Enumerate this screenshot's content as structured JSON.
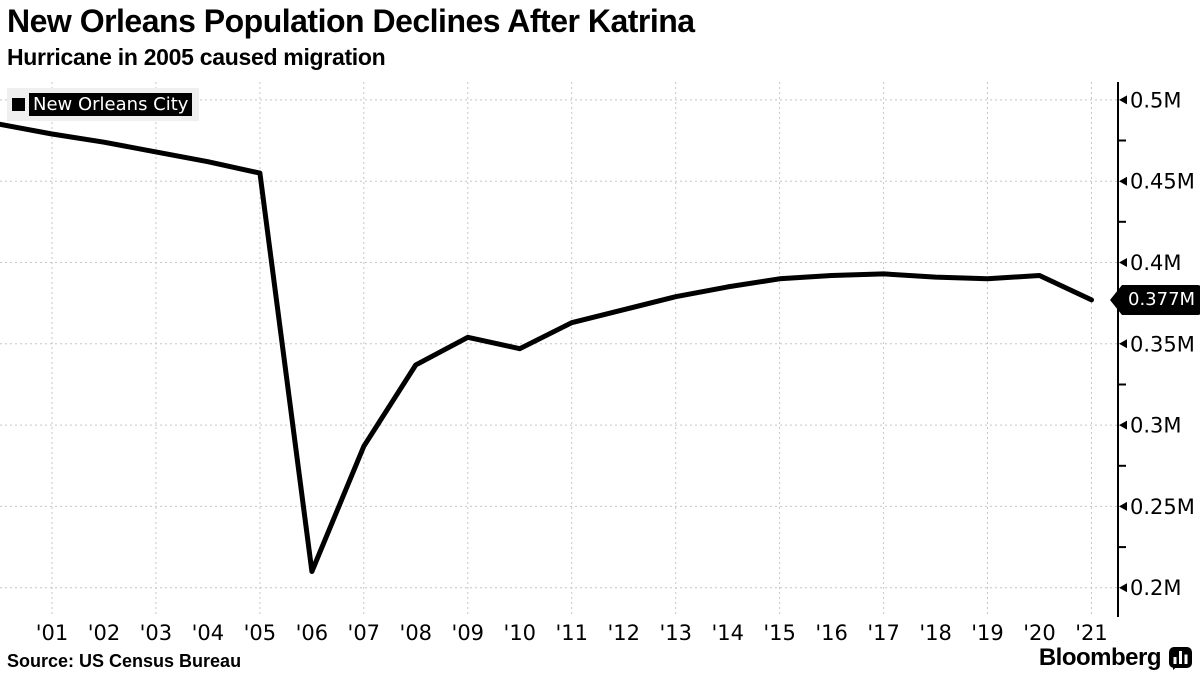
{
  "page": {
    "background": "#ffffff"
  },
  "legend": {
    "label": "New Orleans City",
    "swatch_color": "#000000",
    "background": "#efefef"
  },
  "source": "Source: US Census Bureau",
  "brand": {
    "name": "Bloomberg"
  },
  "chart_data": {
    "type": "line",
    "title": "New Orleans Population Declines After Katrina",
    "subtitle": "Hurricane in 2005 caused migration",
    "x": [
      2000,
      2001,
      2002,
      2003,
      2004,
      2005,
      2006,
      2007,
      2008,
      2009,
      2010,
      2011,
      2012,
      2013,
      2014,
      2015,
      2016,
      2017,
      2018,
      2019,
      2020,
      2021
    ],
    "series": [
      {
        "name": "New Orleans City",
        "color": "#000000",
        "values": [
          0.485,
          0.479,
          0.474,
          0.468,
          0.462,
          0.455,
          0.21,
          0.287,
          0.337,
          0.354,
          0.347,
          0.363,
          0.371,
          0.379,
          0.385,
          0.39,
          0.392,
          0.393,
          0.391,
          0.39,
          0.392,
          0.377
        ]
      }
    ],
    "x_ticks": [
      {
        "year": 2001,
        "label": "'01"
      },
      {
        "year": 2002,
        "label": "'02"
      },
      {
        "year": 2003,
        "label": "'03"
      },
      {
        "year": 2004,
        "label": "'04"
      },
      {
        "year": 2005,
        "label": "'05"
      },
      {
        "year": 2006,
        "label": "'06"
      },
      {
        "year": 2007,
        "label": "'07"
      },
      {
        "year": 2008,
        "label": "'08"
      },
      {
        "year": 2009,
        "label": "'09"
      },
      {
        "year": 2010,
        "label": "'10"
      },
      {
        "year": 2011,
        "label": "'11"
      },
      {
        "year": 2012,
        "label": "'12"
      },
      {
        "year": 2013,
        "label": "'13"
      },
      {
        "year": 2014,
        "label": "'14"
      },
      {
        "year": 2015,
        "label": "'15"
      },
      {
        "year": 2016,
        "label": "'16"
      },
      {
        "year": 2017,
        "label": "'17"
      },
      {
        "year": 2018,
        "label": "'18"
      },
      {
        "year": 2019,
        "label": "'19"
      },
      {
        "year": 2020,
        "label": "'20"
      },
      {
        "year": 2021,
        "label": "'21"
      }
    ],
    "gridline_years": [
      2001,
      2003,
      2005,
      2007,
      2009,
      2011,
      2013,
      2015,
      2017,
      2019,
      2021
    ],
    "y_ticks": [
      {
        "value": 0.5,
        "label": "0.5M"
      },
      {
        "value": 0.45,
        "label": "0.45M"
      },
      {
        "value": 0.4,
        "label": "0.4M"
      },
      {
        "value": 0.35,
        "label": "0.35M"
      },
      {
        "value": 0.3,
        "label": "0.3M"
      },
      {
        "value": 0.25,
        "label": "0.25M"
      },
      {
        "value": 0.2,
        "label": "0.2M"
      }
    ],
    "y_minor_ticks": [
      0.475,
      0.425,
      0.375,
      0.325,
      0.275,
      0.225
    ],
    "xlim": [
      2000,
      2021.51
    ],
    "ylim": [
      0.182,
      0.511
    ],
    "unit": "M",
    "last_point_label": "0.377M",
    "grid": true,
    "grid_color": "#c5c5c5",
    "legend_position": "top-left",
    "y_axis_side": "right"
  }
}
